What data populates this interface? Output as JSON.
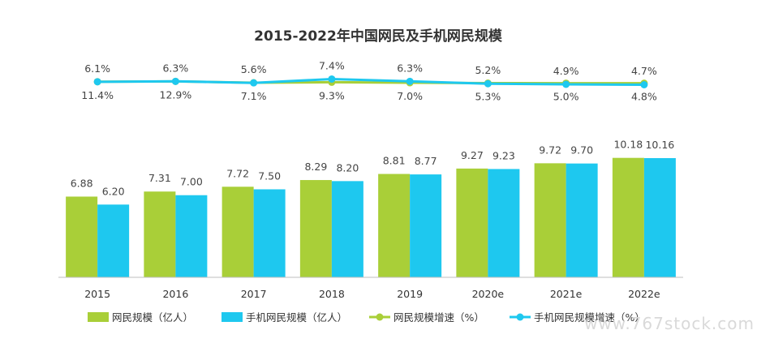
{
  "chart_data": {
    "type": "bar",
    "title": "2015-2022年中国网民及手机网民规模",
    "categories": [
      "2015",
      "2016",
      "2017",
      "2018",
      "2019",
      "2020e",
      "2021e",
      "2022e"
    ],
    "series": [
      {
        "name": "网民规模（亿人）",
        "type": "bar",
        "color": "#a9cf38",
        "values": [
          6.88,
          7.31,
          7.72,
          8.29,
          8.81,
          9.27,
          9.72,
          10.18
        ],
        "labels": [
          "6.88",
          "7.31",
          "7.72",
          "8.29",
          "8.81",
          "9.27",
          "9.72",
          "10.18"
        ]
      },
      {
        "name": "手机网民规模（亿人）",
        "type": "bar",
        "color": "#1ec8ef",
        "values": [
          6.2,
          7.0,
          7.5,
          8.2,
          8.77,
          9.23,
          9.7,
          10.16
        ],
        "labels": [
          "6.20",
          "7.00",
          "7.50",
          "8.20",
          "8.77",
          "9.23",
          "9.70",
          "10.16"
        ]
      },
      {
        "name": "网民规模增速（%）",
        "type": "line",
        "color": "#a9cf38",
        "values": [
          11.4,
          12.9,
          7.1,
          9.3,
          7.0,
          5.3,
          5.0,
          4.8
        ],
        "labels": [
          "11.4%",
          "12.9%",
          "7.1%",
          "9.3%",
          "7.0%",
          "5.3%",
          "5.0%",
          "4.8%"
        ]
      },
      {
        "name": "手机网民规模增速（%）",
        "type": "line",
        "color": "#1ec8ef",
        "values": [
          6.1,
          6.3,
          5.6,
          7.4,
          6.3,
          5.2,
          4.9,
          4.7
        ],
        "labels": [
          "6.1%",
          "6.3%",
          "5.6%",
          "7.4%",
          "6.3%",
          "5.2%",
          "4.9%",
          "4.7%"
        ]
      }
    ],
    "legend_position": "bottom",
    "grid": false
  },
  "watermark": "www.767stock.com"
}
